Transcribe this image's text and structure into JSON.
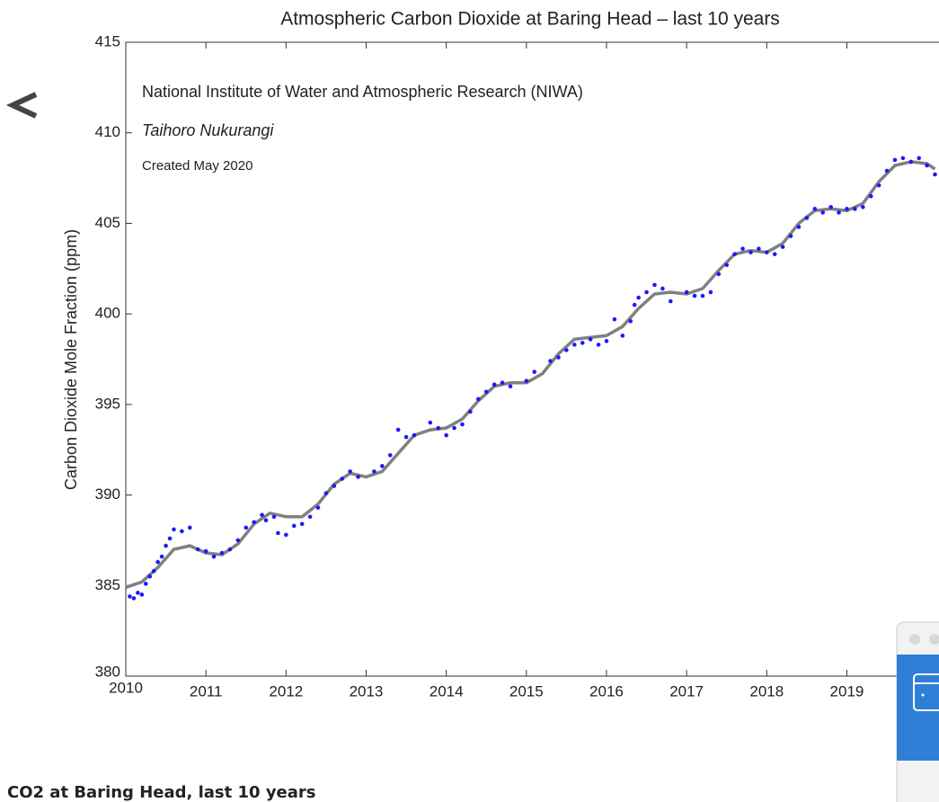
{
  "chart_data": {
    "type": "scatter",
    "title": "Atmospheric Carbon Dioxide at Baring Head – last 10 years",
    "ylabel": "Carbon Dioxide Mole Fraction (ppm)",
    "annotations": [
      "National Institute of Water and Atmospheric Research (NIWA)",
      "Taihoro Nukurangi",
      "Created May 2020"
    ],
    "xlim": [
      2010,
      2020.15
    ],
    "xticks": [
      2010,
      2011,
      2012,
      2013,
      2014,
      2015,
      2016,
      2017,
      2018,
      2019
    ],
    "ylim": [
      380,
      415
    ],
    "yticks": [
      380,
      385,
      390,
      395,
      400,
      405,
      410,
      415
    ],
    "series": [
      {
        "color": "#808080",
        "line": true,
        "x": [
          2010.0,
          2010.2,
          2010.4,
          2010.6,
          2010.8,
          2011.0,
          2011.2,
          2011.4,
          2011.6,
          2011.8,
          2012.0,
          2012.2,
          2012.4,
          2012.6,
          2012.8,
          2013.0,
          2013.2,
          2013.4,
          2013.6,
          2013.8,
          2014.0,
          2014.2,
          2014.4,
          2014.6,
          2014.8,
          2015.0,
          2015.2,
          2015.4,
          2015.6,
          2015.8,
          2016.0,
          2016.2,
          2016.4,
          2016.6,
          2016.8,
          2017.0,
          2017.2,
          2017.4,
          2017.6,
          2017.8,
          2018.0,
          2018.2,
          2018.4,
          2018.6,
          2018.8,
          2019.0,
          2019.2,
          2019.4,
          2019.6,
          2019.8,
          2020.0,
          2020.1
        ],
        "values": [
          384.9,
          385.2,
          386.0,
          387.0,
          387.2,
          386.8,
          386.7,
          387.3,
          388.4,
          389.0,
          388.8,
          388.8,
          389.5,
          390.6,
          391.2,
          391.0,
          391.3,
          392.3,
          393.3,
          393.6,
          393.7,
          394.2,
          395.2,
          396.0,
          396.2,
          396.2,
          396.7,
          397.8,
          398.6,
          398.7,
          398.8,
          399.3,
          400.3,
          401.1,
          401.2,
          401.1,
          401.4,
          402.4,
          403.3,
          403.5,
          403.4,
          403.9,
          405.0,
          405.7,
          405.8,
          405.7,
          406.1,
          407.3,
          408.2,
          408.4,
          408.3,
          408.0
        ]
      },
      {
        "color": "#1a1aff",
        "line": false,
        "x": [
          2010.05,
          2010.1,
          2010.15,
          2010.2,
          2010.25,
          2010.3,
          2010.35,
          2010.4,
          2010.45,
          2010.5,
          2010.55,
          2010.6,
          2010.7,
          2010.8,
          2010.9,
          2011.0,
          2011.1,
          2011.2,
          2011.3,
          2011.4,
          2011.5,
          2011.6,
          2011.7,
          2011.75,
          2011.85,
          2011.9,
          2012.0,
          2012.1,
          2012.2,
          2012.3,
          2012.4,
          2012.5,
          2012.6,
          2012.7,
          2012.8,
          2012.9,
          2013.1,
          2013.2,
          2013.3,
          2013.4,
          2013.5,
          2013.6,
          2013.8,
          2013.9,
          2014.0,
          2014.1,
          2014.2,
          2014.3,
          2014.4,
          2014.5,
          2014.6,
          2014.7,
          2014.8,
          2015.0,
          2015.1,
          2015.3,
          2015.4,
          2015.5,
          2015.6,
          2015.7,
          2015.8,
          2015.9,
          2016.0,
          2016.1,
          2016.2,
          2016.3,
          2016.35,
          2016.4,
          2016.5,
          2016.6,
          2016.7,
          2016.8,
          2017.0,
          2017.1,
          2017.2,
          2017.3,
          2017.4,
          2017.5,
          2017.6,
          2017.7,
          2017.8,
          2017.9,
          2018.0,
          2018.1,
          2018.2,
          2018.3,
          2018.4,
          2018.5,
          2018.6,
          2018.7,
          2018.8,
          2018.9,
          2019.0,
          2019.1,
          2019.2,
          2019.3,
          2019.4,
          2019.5,
          2019.6,
          2019.7,
          2019.8,
          2019.9,
          2020.0,
          2020.1
        ],
        "values": [
          384.4,
          384.3,
          384.6,
          384.5,
          385.1,
          385.5,
          385.8,
          386.3,
          386.6,
          387.2,
          387.6,
          388.1,
          388.0,
          388.2,
          387.0,
          386.9,
          386.6,
          386.8,
          387.0,
          387.5,
          388.2,
          388.5,
          388.9,
          388.6,
          388.8,
          387.9,
          387.8,
          388.3,
          388.4,
          388.8,
          389.3,
          390.1,
          390.5,
          390.9,
          391.3,
          391.0,
          391.3,
          391.6,
          392.2,
          393.6,
          393.2,
          393.3,
          394.0,
          393.7,
          393.3,
          393.7,
          393.9,
          394.6,
          395.3,
          395.7,
          396.1,
          396.2,
          396.0,
          396.3,
          396.8,
          397.4,
          397.6,
          398.0,
          398.3,
          398.4,
          398.6,
          398.3,
          398.5,
          399.7,
          398.8,
          399.6,
          400.5,
          400.9,
          401.2,
          401.6,
          401.4,
          400.7,
          401.2,
          401.0,
          401.0,
          401.2,
          402.2,
          402.7,
          403.3,
          403.6,
          403.4,
          403.6,
          403.4,
          403.3,
          403.7,
          404.3,
          404.8,
          405.3,
          405.8,
          405.6,
          405.9,
          405.6,
          405.8,
          405.8,
          405.9,
          406.5,
          407.1,
          407.9,
          408.5,
          408.6,
          408.4,
          408.6,
          408.2,
          407.7
        ]
      }
    ]
  },
  "caption": "CO2 at Baring Head, last 10 years"
}
